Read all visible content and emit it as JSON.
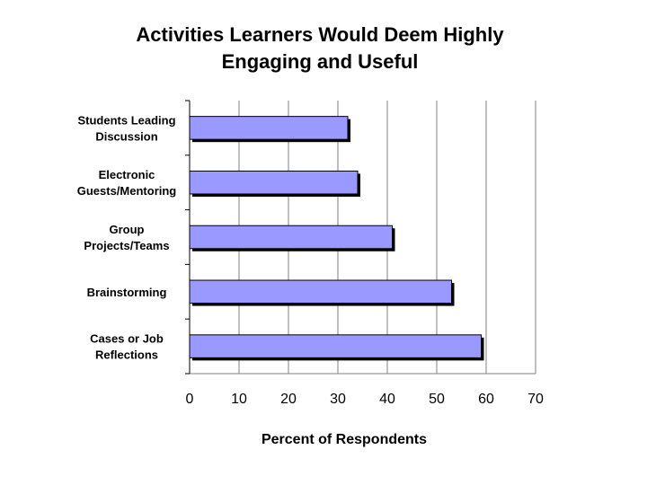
{
  "chart_data": {
    "type": "bar",
    "orientation": "horizontal",
    "title_lines": [
      "Activities Learners Would Deem Highly",
      "Engaging and Useful"
    ],
    "xlabel": "Percent of Respondents",
    "ylabel": "",
    "xlim": [
      0,
      70
    ],
    "xticks": [
      "0",
      "10",
      "20",
      "30",
      "40",
      "50",
      "60",
      "70"
    ],
    "grid": "vertical",
    "legend": "none",
    "categories": [
      [
        "Students Leading",
        "Discussion"
      ],
      [
        "Electronic",
        "Guests/Mentoring"
      ],
      [
        "Group",
        "Projects/Teams"
      ],
      [
        "Brainstorming"
      ],
      [
        "Cases or Job",
        "Reflections"
      ]
    ],
    "values": [
      32,
      34,
      41,
      53,
      59
    ],
    "bar_color": "#9999ff",
    "bar_edge_color": "#000000"
  }
}
